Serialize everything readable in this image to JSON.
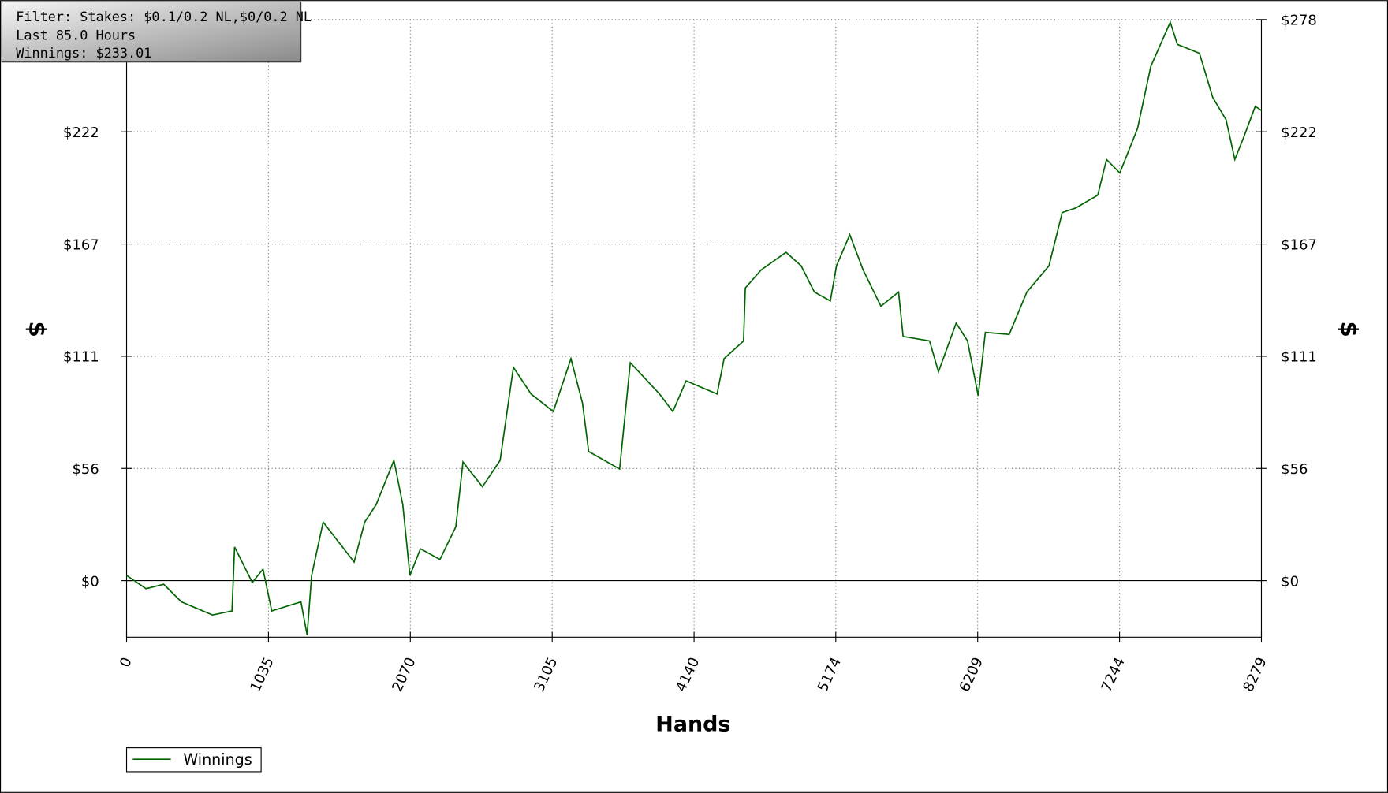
{
  "chart_data": {
    "type": "line",
    "annotations": [
      "Filter: Stakes: $0.1/0.2 NL,$0/0.2 NL",
      "Last 85.0 Hours",
      "Winnings: $233.01"
    ],
    "xlabel": "Hands",
    "ylabel": "$",
    "x": [
      0,
      142,
      271,
      400,
      626,
      769,
      788,
      917,
      995,
      1059,
      1272,
      1317,
      1350,
      1434,
      1660,
      1737,
      1821,
      1950,
      2015,
      2067,
      2144,
      2286,
      2402,
      2454,
      2596,
      2725,
      2822,
      2951,
      3113,
      3242,
      3326,
      3371,
      3597,
      3675,
      3888,
      3985,
      4082,
      4308,
      4359,
      4501,
      4514,
      4630,
      4811,
      4921,
      5018,
      5134,
      5179,
      5276,
      5373,
      5503,
      5632,
      5665,
      5858,
      5923,
      6052,
      6135,
      6213,
      6265,
      6439,
      6568,
      6729,
      6826,
      6923,
      7085,
      7149,
      7246,
      7375,
      7472,
      7614,
      7666,
      7827,
      7924,
      8021,
      8085,
      8150,
      8234,
      8279
    ],
    "series": [
      {
        "name": "Winnings",
        "color": "#006400",
        "values": [
          2.6,
          -4,
          -1.8,
          -10.5,
          -17,
          -15,
          16.7,
          -0.9,
          5.7,
          -15,
          -10.5,
          -27,
          2.6,
          29,
          9.2,
          29,
          37.7,
          59.6,
          37.7,
          2.6,
          15.8,
          10.5,
          26.7,
          58.8,
          46.5,
          59.6,
          105.7,
          92.5,
          83.8,
          110,
          88,
          64,
          55.3,
          108,
          92.5,
          83.8,
          99,
          92.5,
          110,
          118.8,
          145,
          154,
          162.7,
          156,
          143,
          138.6,
          156,
          171.4,
          154,
          136,
          143,
          121,
          118.8,
          103.5,
          127.6,
          118.8,
          91.6,
          123,
          122,
          143,
          156,
          182.4,
          184.6,
          191,
          208.7,
          202,
          224,
          254.8,
          276.7,
          265.7,
          261.3,
          239.4,
          228.4,
          208.7,
          219.7,
          235,
          233.01
        ]
      }
    ],
    "xlim": [
      0,
      8279
    ],
    "xticks": [
      0,
      1035,
      2070,
      3105,
      4140,
      5174,
      6209,
      7244,
      8279
    ],
    "ylim": [
      -28,
      278
    ],
    "yticks": [
      {
        "value": 0,
        "label": "$0"
      },
      {
        "value": 55.6,
        "label": "$56"
      },
      {
        "value": 111.2,
        "label": "$111"
      },
      {
        "value": 166.8,
        "label": "$167"
      },
      {
        "value": 222.4,
        "label": "$222"
      },
      {
        "value": 278,
        "label": "$278"
      }
    ],
    "grid": true,
    "legend": "bottom left"
  }
}
